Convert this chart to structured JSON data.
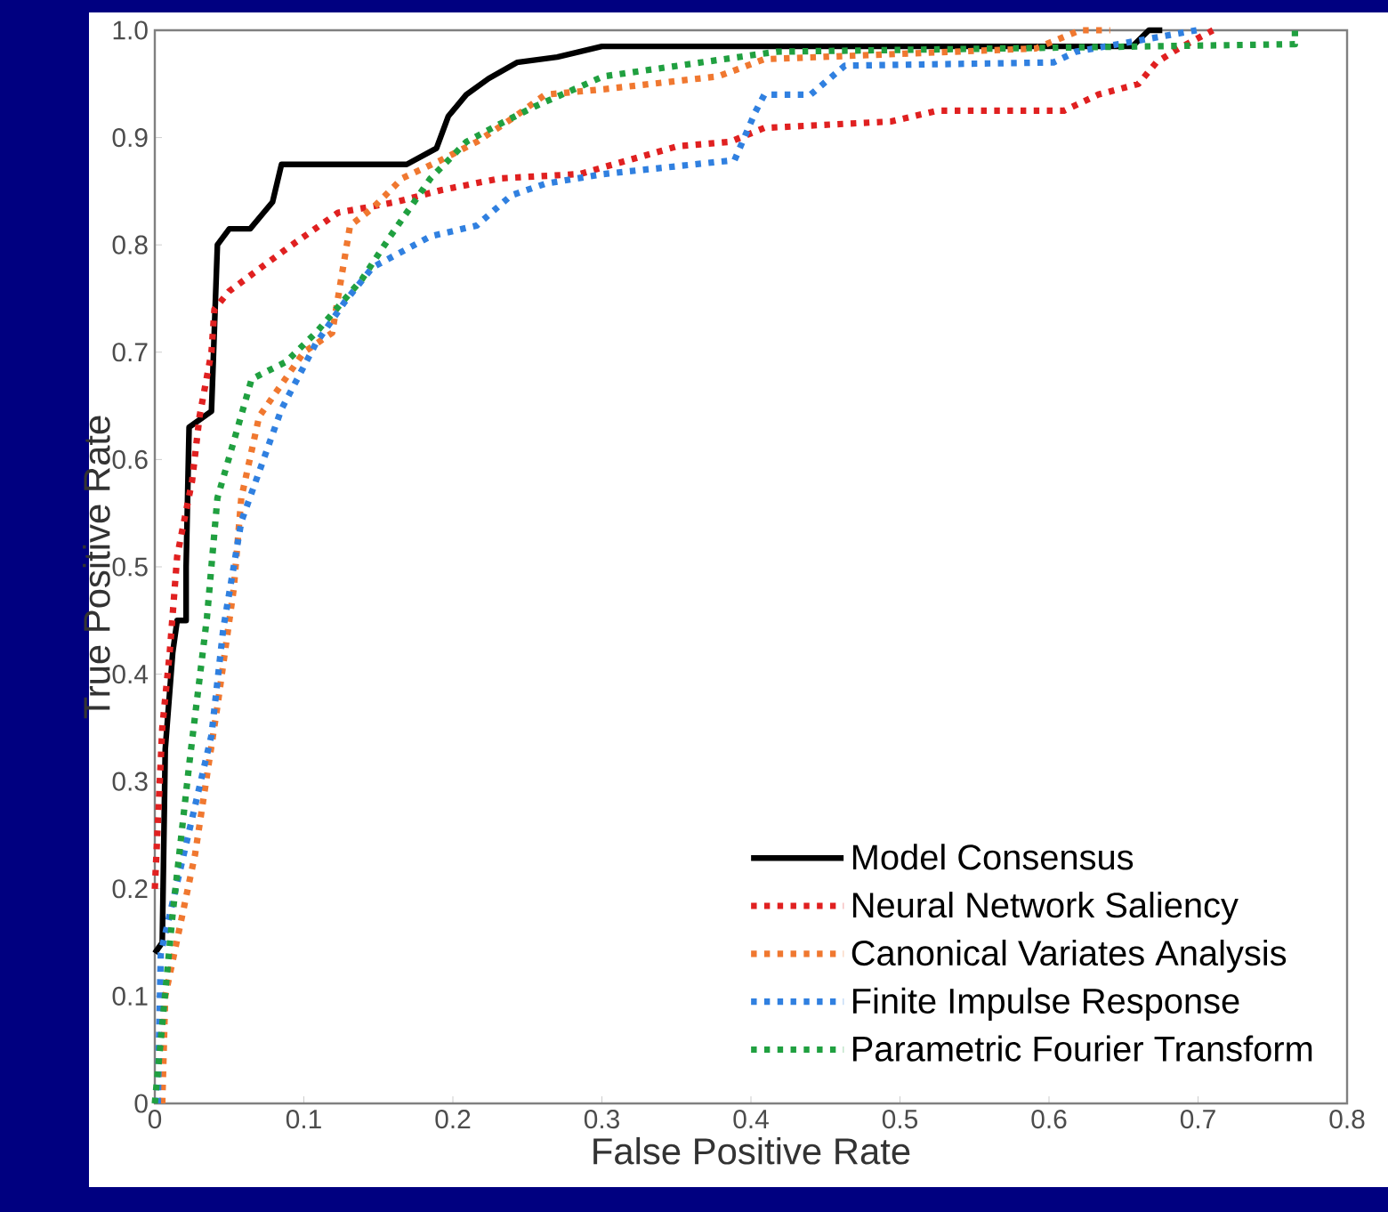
{
  "chart_data": {
    "type": "line",
    "xlabel": "False Positive Rate",
    "ylabel": "True Positive Rate",
    "xlim": [
      0,
      0.8
    ],
    "ylim": [
      0,
      1.0
    ],
    "xticks": [
      0,
      0.1,
      0.2,
      0.3,
      0.4,
      0.5,
      0.6,
      0.7,
      0.8
    ],
    "yticks": [
      0,
      0.1,
      0.2,
      0.3,
      0.4,
      0.5,
      0.6,
      0.7,
      0.8,
      0.9,
      {
        "value": 1.0,
        "label": "1.0"
      }
    ],
    "grid": false,
    "legend": "bottom right",
    "series": [
      {
        "name": "Model Consensus",
        "color": "#000000",
        "line_style": "solid",
        "x": [
          0,
          0.005,
          0.007,
          0.012,
          0.015,
          0.021,
          0.021,
          0.023,
          0.038,
          0.042,
          0.05,
          0.064,
          0.073,
          0.079,
          0.085,
          0.169,
          0.189,
          0.197,
          0.209,
          0.224,
          0.243,
          0.27,
          0.3,
          0.656,
          0.667,
          0.676
        ],
        "values": [
          0.14,
          0.15,
          0.33,
          0.42,
          0.45,
          0.45,
          0.5,
          0.63,
          0.645,
          0.8,
          0.815,
          0.815,
          0.83,
          0.84,
          0.875,
          0.875,
          0.89,
          0.92,
          0.94,
          0.955,
          0.97,
          0.975,
          0.985,
          0.985,
          1.0,
          1.0
        ]
      },
      {
        "name": "Neural Network Saliency",
        "color": "#e02020",
        "line_style": "dotted",
        "x": [
          0,
          0.005,
          0.01,
          0.015,
          0.025,
          0.03,
          0.038,
          0.04,
          0.05,
          0.088,
          0.123,
          0.162,
          0.192,
          0.232,
          0.285,
          0.351,
          0.386,
          0.409,
          0.494,
          0.525,
          0.61,
          0.633,
          0.66,
          0.672,
          0.687,
          0.71
        ],
        "values": [
          0.2,
          0.35,
          0.42,
          0.51,
          0.58,
          0.64,
          0.7,
          0.74,
          0.757,
          0.796,
          0.83,
          0.84,
          0.851,
          0.862,
          0.866,
          0.892,
          0.896,
          0.909,
          0.915,
          0.925,
          0.925,
          0.94,
          0.95,
          0.97,
          0.983,
          1.0
        ]
      },
      {
        "name": "Canonical Variates Analysis",
        "color": "#f07830",
        "line_style": "dotted",
        "x": [
          0.005,
          0.007,
          0.027,
          0.042,
          0.053,
          0.058,
          0.07,
          0.1,
          0.119,
          0.125,
          0.131,
          0.146,
          0.166,
          0.192,
          0.216,
          0.239,
          0.262,
          0.301,
          0.378,
          0.409,
          0.591,
          0.621,
          0.641
        ],
        "values": [
          0.0,
          0.1,
          0.232,
          0.37,
          0.48,
          0.564,
          0.64,
          0.7,
          0.718,
          0.768,
          0.818,
          0.834,
          0.862,
          0.879,
          0.896,
          0.917,
          0.94,
          0.945,
          0.957,
          0.973,
          0.983,
          1.0,
          1.0
        ]
      },
      {
        "name": "Finite Impulse Response",
        "color": "#3080e0",
        "line_style": "dotted",
        "x": [
          0.002,
          0.004,
          0.038,
          0.046,
          0.058,
          0.075,
          0.085,
          0.108,
          0.127,
          0.146,
          0.185,
          0.216,
          0.239,
          0.262,
          0.301,
          0.389,
          0.403,
          0.409,
          0.44,
          0.463,
          0.603,
          0.618,
          0.699
        ],
        "values": [
          0.0,
          0.14,
          0.343,
          0.443,
          0.542,
          0.608,
          0.647,
          0.708,
          0.746,
          0.779,
          0.808,
          0.818,
          0.846,
          0.857,
          0.866,
          0.879,
          0.924,
          0.94,
          0.94,
          0.967,
          0.97,
          0.98,
          1.0
        ]
      },
      {
        "name": "Parametric Fourier Transform",
        "color": "#20a040",
        "line_style": "dotted",
        "x": [
          0.0,
          0.012,
          0.023,
          0.035,
          0.042,
          0.065,
          0.088,
          0.108,
          0.139,
          0.158,
          0.174,
          0.185,
          0.209,
          0.232,
          0.255,
          0.301,
          0.417,
          0.765,
          0.765
        ],
        "values": [
          0.0,
          0.177,
          0.315,
          0.453,
          0.564,
          0.675,
          0.691,
          0.718,
          0.768,
          0.808,
          0.84,
          0.862,
          0.896,
          0.913,
          0.929,
          0.957,
          0.98,
          0.987,
          1.0
        ]
      }
    ]
  }
}
